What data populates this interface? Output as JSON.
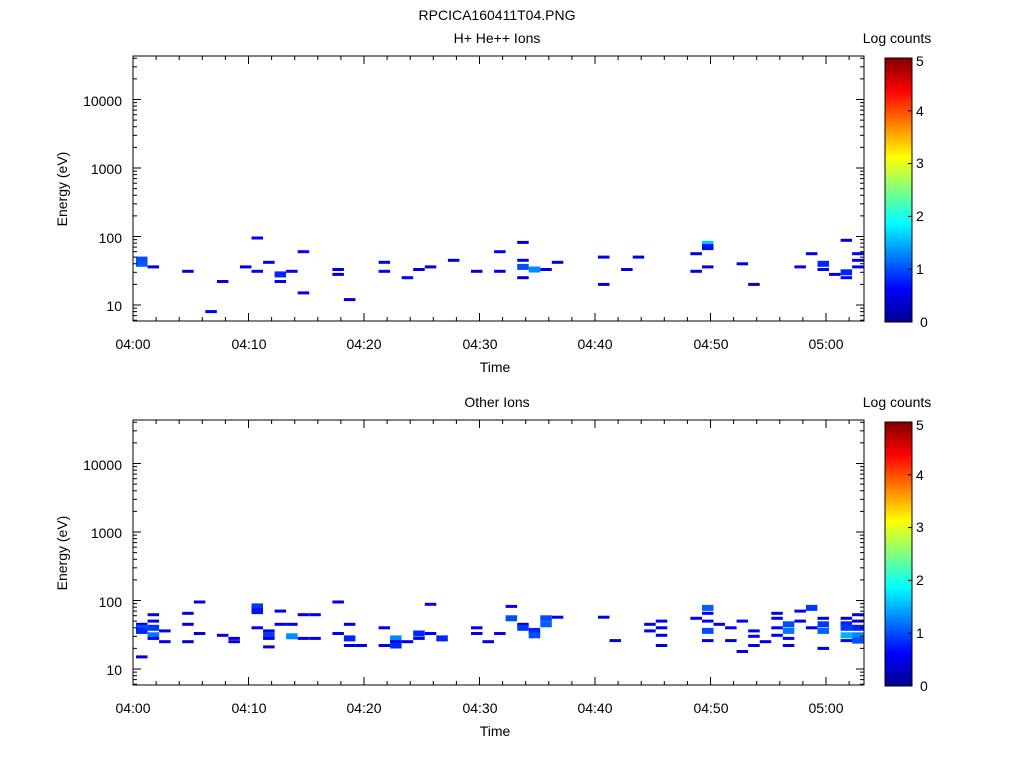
{
  "figure_title": "RPCICA160411T04.PNG",
  "colors": {
    "background": "#ffffff",
    "axes": "#000000",
    "colormap_jet": [
      "#00008f",
      "#0000ff",
      "#00ffff",
      "#ffff00",
      "#ff0000",
      "#800000"
    ]
  },
  "chart_data": [
    {
      "type": "heatmap",
      "title": "H+ He++ Ions",
      "xlabel": "Time",
      "ylabel": "Energy (eV)",
      "x_scale": "time",
      "y_scale": "log",
      "xlim": [
        "04:00",
        "05:03"
      ],
      "ylim": [
        6,
        45000
      ],
      "x_ticks": [
        "04:00",
        "04:10",
        "04:20",
        "04:30",
        "04:40",
        "04:50",
        "05:00"
      ],
      "y_ticks": [
        "10",
        "100",
        "1000",
        "10000"
      ],
      "colorbar": {
        "label": "Log counts",
        "range": [
          0,
          5
        ],
        "ticks": [
          "0",
          "1",
          "2",
          "3",
          "4",
          "5"
        ]
      },
      "cells": [
        {
          "t": "04:00",
          "e": 40,
          "v": 1.1
        },
        {
          "t": "04:00",
          "e": 46,
          "v": 1.0
        },
        {
          "t": "04:01",
          "e": 36,
          "v": 0.5
        },
        {
          "t": "04:04",
          "e": 31,
          "v": 0.4
        },
        {
          "t": "04:06",
          "e": 8,
          "v": 0.5
        },
        {
          "t": "04:07",
          "e": 22,
          "v": 0.4
        },
        {
          "t": "04:09",
          "e": 36,
          "v": 0.4
        },
        {
          "t": "04:10",
          "e": 95,
          "v": 0.6
        },
        {
          "t": "04:10",
          "e": 31,
          "v": 0.5
        },
        {
          "t": "04:11",
          "e": 42,
          "v": 0.5
        },
        {
          "t": "04:12",
          "e": 28,
          "v": 0.8
        },
        {
          "t": "04:12",
          "e": 22,
          "v": 0.5
        },
        {
          "t": "04:13",
          "e": 31,
          "v": 0.6
        },
        {
          "t": "04:14",
          "e": 60,
          "v": 0.6
        },
        {
          "t": "04:14",
          "e": 15,
          "v": 0.5
        },
        {
          "t": "04:17",
          "e": 33,
          "v": 0.5
        },
        {
          "t": "04:17",
          "e": 28,
          "v": 0.4
        },
        {
          "t": "04:18",
          "e": 12,
          "v": 0.4
        },
        {
          "t": "04:21",
          "e": 42,
          "v": 0.5
        },
        {
          "t": "04:21",
          "e": 31,
          "v": 0.5
        },
        {
          "t": "04:23",
          "e": 25,
          "v": 0.6
        },
        {
          "t": "04:24",
          "e": 33,
          "v": 0.5
        },
        {
          "t": "04:25",
          "e": 36,
          "v": 0.4
        },
        {
          "t": "04:27",
          "e": 45,
          "v": 0.4
        },
        {
          "t": "04:29",
          "e": 31,
          "v": 0.4
        },
        {
          "t": "04:31",
          "e": 60,
          "v": 0.5
        },
        {
          "t": "04:31",
          "e": 31,
          "v": 0.5
        },
        {
          "t": "04:33",
          "e": 82,
          "v": 0.4
        },
        {
          "t": "04:33",
          "e": 45,
          "v": 0.5
        },
        {
          "t": "04:33",
          "e": 36,
          "v": 1.0
        },
        {
          "t": "04:33",
          "e": 25,
          "v": 0.4
        },
        {
          "t": "04:34",
          "e": 33,
          "v": 1.3
        },
        {
          "t": "04:35",
          "e": 33,
          "v": 0.5
        },
        {
          "t": "04:36",
          "e": 42,
          "v": 0.5
        },
        {
          "t": "04:40",
          "e": 50,
          "v": 0.5
        },
        {
          "t": "04:40",
          "e": 20,
          "v": 0.4
        },
        {
          "t": "04:42",
          "e": 33,
          "v": 0.5
        },
        {
          "t": "04:43",
          "e": 50,
          "v": 0.5
        },
        {
          "t": "04:48",
          "e": 56,
          "v": 0.5
        },
        {
          "t": "04:48",
          "e": 31,
          "v": 0.5
        },
        {
          "t": "04:49",
          "e": 78,
          "v": 1.6
        },
        {
          "t": "04:49",
          "e": 70,
          "v": 0.7
        },
        {
          "t": "04:49",
          "e": 36,
          "v": 0.5
        },
        {
          "t": "04:52",
          "e": 40,
          "v": 0.5
        },
        {
          "t": "04:53",
          "e": 20,
          "v": 0.4
        },
        {
          "t": "04:57",
          "e": 36,
          "v": 0.5
        },
        {
          "t": "04:58",
          "e": 56,
          "v": 0.5
        },
        {
          "t": "04:59",
          "e": 40,
          "v": 0.8
        },
        {
          "t": "04:59",
          "e": 33,
          "v": 0.5
        },
        {
          "t": "05:00",
          "e": 28,
          "v": 0.5
        },
        {
          "t": "05:01",
          "e": 88,
          "v": 0.4
        },
        {
          "t": "05:01",
          "e": 30,
          "v": 0.8
        },
        {
          "t": "05:01",
          "e": 25,
          "v": 0.6
        },
        {
          "t": "05:02",
          "e": 56,
          "v": 0.5
        },
        {
          "t": "05:02",
          "e": 45,
          "v": 0.5
        },
        {
          "t": "05:02",
          "e": 36,
          "v": 0.5
        }
      ]
    },
    {
      "type": "heatmap",
      "title": "Other Ions",
      "xlabel": "Time",
      "ylabel": "Energy (eV)",
      "x_scale": "time",
      "y_scale": "log",
      "xlim": [
        "04:00",
        "05:03"
      ],
      "ylim": [
        6,
        45000
      ],
      "x_ticks": [
        "04:00",
        "04:10",
        "04:20",
        "04:30",
        "04:40",
        "04:50",
        "05:00"
      ],
      "y_ticks": [
        "10",
        "100",
        "1000",
        "10000"
      ],
      "colorbar": {
        "label": "Log counts",
        "range": [
          0,
          5
        ],
        "ticks": [
          "0",
          "1",
          "2",
          "3",
          "4",
          "5"
        ]
      },
      "cells": [
        {
          "t": "04:00",
          "e": 45,
          "v": 0.5
        },
        {
          "t": "04:00",
          "e": 40,
          "v": 1.0
        },
        {
          "t": "04:00",
          "e": 36,
          "v": 0.8
        },
        {
          "t": "04:00",
          "e": 15,
          "v": 0.5
        },
        {
          "t": "04:01",
          "e": 62,
          "v": 0.5
        },
        {
          "t": "04:01",
          "e": 50,
          "v": 0.5
        },
        {
          "t": "04:01",
          "e": 40,
          "v": 0.9
        },
        {
          "t": "04:01",
          "e": 31,
          "v": 1.2
        },
        {
          "t": "04:01",
          "e": 28,
          "v": 0.6
        },
        {
          "t": "04:02",
          "e": 36,
          "v": 0.5
        },
        {
          "t": "04:02",
          "e": 25,
          "v": 0.5
        },
        {
          "t": "04:04",
          "e": 65,
          "v": 0.5
        },
        {
          "t": "04:04",
          "e": 45,
          "v": 0.5
        },
        {
          "t": "04:04",
          "e": 25,
          "v": 0.4
        },
        {
          "t": "04:05",
          "e": 95,
          "v": 0.5
        },
        {
          "t": "04:05",
          "e": 33,
          "v": 0.4
        },
        {
          "t": "04:07",
          "e": 31,
          "v": 0.4
        },
        {
          "t": "04:08",
          "e": 28,
          "v": 0.5
        },
        {
          "t": "04:08",
          "e": 25,
          "v": 0.4
        },
        {
          "t": "04:10",
          "e": 82,
          "v": 0.9
        },
        {
          "t": "04:10",
          "e": 70,
          "v": 0.7
        },
        {
          "t": "04:10",
          "e": 40,
          "v": 0.5
        },
        {
          "t": "04:11",
          "e": 36,
          "v": 0.6
        },
        {
          "t": "04:11",
          "e": 31,
          "v": 0.9
        },
        {
          "t": "04:11",
          "e": 28,
          "v": 0.5
        },
        {
          "t": "04:11",
          "e": 21,
          "v": 0.5
        },
        {
          "t": "04:12",
          "e": 70,
          "v": 0.5
        },
        {
          "t": "04:12",
          "e": 45,
          "v": 0.5
        },
        {
          "t": "04:13",
          "e": 45,
          "v": 0.5
        },
        {
          "t": "04:13",
          "e": 30,
          "v": 1.3
        },
        {
          "t": "04:14",
          "e": 62,
          "v": 0.5
        },
        {
          "t": "04:14",
          "e": 28,
          "v": 0.5
        },
        {
          "t": "04:15",
          "e": 62,
          "v": 0.5
        },
        {
          "t": "04:15",
          "e": 28,
          "v": 0.5
        },
        {
          "t": "04:17",
          "e": 95,
          "v": 0.5
        },
        {
          "t": "04:17",
          "e": 33,
          "v": 0.5
        },
        {
          "t": "04:18",
          "e": 45,
          "v": 0.5
        },
        {
          "t": "04:18",
          "e": 28,
          "v": 0.8
        },
        {
          "t": "04:18",
          "e": 22,
          "v": 0.5
        },
        {
          "t": "04:19",
          "e": 22,
          "v": 0.5
        },
        {
          "t": "04:21",
          "e": 40,
          "v": 0.5
        },
        {
          "t": "04:21",
          "e": 22,
          "v": 0.5
        },
        {
          "t": "04:22",
          "e": 28,
          "v": 1.3
        },
        {
          "t": "04:22",
          "e": 25,
          "v": 0.5
        },
        {
          "t": "04:22",
          "e": 22,
          "v": 0.8
        },
        {
          "t": "04:23",
          "e": 25,
          "v": 0.5
        },
        {
          "t": "04:24",
          "e": 33,
          "v": 0.8
        },
        {
          "t": "04:24",
          "e": 28,
          "v": 0.5
        },
        {
          "t": "04:25",
          "e": 88,
          "v": 0.6
        },
        {
          "t": "04:25",
          "e": 33,
          "v": 0.5
        },
        {
          "t": "04:26",
          "e": 28,
          "v": 0.8
        },
        {
          "t": "04:29",
          "e": 40,
          "v": 0.5
        },
        {
          "t": "04:29",
          "e": 33,
          "v": 0.5
        },
        {
          "t": "04:30",
          "e": 25,
          "v": 0.4
        },
        {
          "t": "04:31",
          "e": 33,
          "v": 0.5
        },
        {
          "t": "04:32",
          "e": 82,
          "v": 0.5
        },
        {
          "t": "04:32",
          "e": 55,
          "v": 1.0
        },
        {
          "t": "04:33",
          "e": 45,
          "v": 0.5
        },
        {
          "t": "04:33",
          "e": 40,
          "v": 0.9
        },
        {
          "t": "04:34",
          "e": 36,
          "v": 0.8
        },
        {
          "t": "04:34",
          "e": 31,
          "v": 1.0
        },
        {
          "t": "04:35",
          "e": 55,
          "v": 1.0
        },
        {
          "t": "04:35",
          "e": 45,
          "v": 1.1
        },
        {
          "t": "04:36",
          "e": 57,
          "v": 0.5
        },
        {
          "t": "04:40",
          "e": 57,
          "v": 0.5
        },
        {
          "t": "04:41",
          "e": 26,
          "v": 0.4
        },
        {
          "t": "04:44",
          "e": 45,
          "v": 0.5
        },
        {
          "t": "04:44",
          "e": 36,
          "v": 0.5
        },
        {
          "t": "04:45",
          "e": 50,
          "v": 0.5
        },
        {
          "t": "04:45",
          "e": 40,
          "v": 0.5
        },
        {
          "t": "04:45",
          "e": 31,
          "v": 0.5
        },
        {
          "t": "04:45",
          "e": 22,
          "v": 0.4
        },
        {
          "t": "04:48",
          "e": 55,
          "v": 0.5
        },
        {
          "t": "04:49",
          "e": 78,
          "v": 1.1
        },
        {
          "t": "04:49",
          "e": 65,
          "v": 0.6
        },
        {
          "t": "04:49",
          "e": 50,
          "v": 0.6
        },
        {
          "t": "04:49",
          "e": 36,
          "v": 1.0
        },
        {
          "t": "04:49",
          "e": 26,
          "v": 0.5
        },
        {
          "t": "04:50",
          "e": 45,
          "v": 0.5
        },
        {
          "t": "04:51",
          "e": 40,
          "v": 0.5
        },
        {
          "t": "04:51",
          "e": 26,
          "v": 0.5
        },
        {
          "t": "04:52",
          "e": 18,
          "v": 0.4
        },
        {
          "t": "04:52",
          "e": 50,
          "v": 0.5
        },
        {
          "t": "04:53",
          "e": 36,
          "v": 0.5
        },
        {
          "t": "04:53",
          "e": 30,
          "v": 0.5
        },
        {
          "t": "04:53",
          "e": 22,
          "v": 0.5
        },
        {
          "t": "04:54",
          "e": 25,
          "v": 0.4
        },
        {
          "t": "04:55",
          "e": 65,
          "v": 0.5
        },
        {
          "t": "04:55",
          "e": 55,
          "v": 0.6
        },
        {
          "t": "04:55",
          "e": 40,
          "v": 0.5
        },
        {
          "t": "04:55",
          "e": 31,
          "v": 0.5
        },
        {
          "t": "04:56",
          "e": 45,
          "v": 1.0
        },
        {
          "t": "04:56",
          "e": 36,
          "v": 1.2
        },
        {
          "t": "04:56",
          "e": 28,
          "v": 0.5
        },
        {
          "t": "04:56",
          "e": 22,
          "v": 0.5
        },
        {
          "t": "04:57",
          "e": 70,
          "v": 0.5
        },
        {
          "t": "04:57",
          "e": 50,
          "v": 0.5
        },
        {
          "t": "04:58",
          "e": 78,
          "v": 0.9
        },
        {
          "t": "04:58",
          "e": 40,
          "v": 0.5
        },
        {
          "t": "04:59",
          "e": 55,
          "v": 0.5
        },
        {
          "t": "04:59",
          "e": 45,
          "v": 0.9
        },
        {
          "t": "04:59",
          "e": 36,
          "v": 1.1
        },
        {
          "t": "04:59",
          "e": 20,
          "v": 0.4
        },
        {
          "t": "05:01",
          "e": 55,
          "v": 0.5
        },
        {
          "t": "05:01",
          "e": 45,
          "v": 0.8
        },
        {
          "t": "05:01",
          "e": 40,
          "v": 0.9
        },
        {
          "t": "05:01",
          "e": 31,
          "v": 1.5
        },
        {
          "t": "05:01",
          "e": 26,
          "v": 0.5
        },
        {
          "t": "05:02",
          "e": 62,
          "v": 0.5
        },
        {
          "t": "05:02",
          "e": 50,
          "v": 0.5
        },
        {
          "t": "05:02",
          "e": 40,
          "v": 0.8
        },
        {
          "t": "05:02",
          "e": 31,
          "v": 1.3
        },
        {
          "t": "05:02",
          "e": 26,
          "v": 1.0
        }
      ]
    }
  ]
}
